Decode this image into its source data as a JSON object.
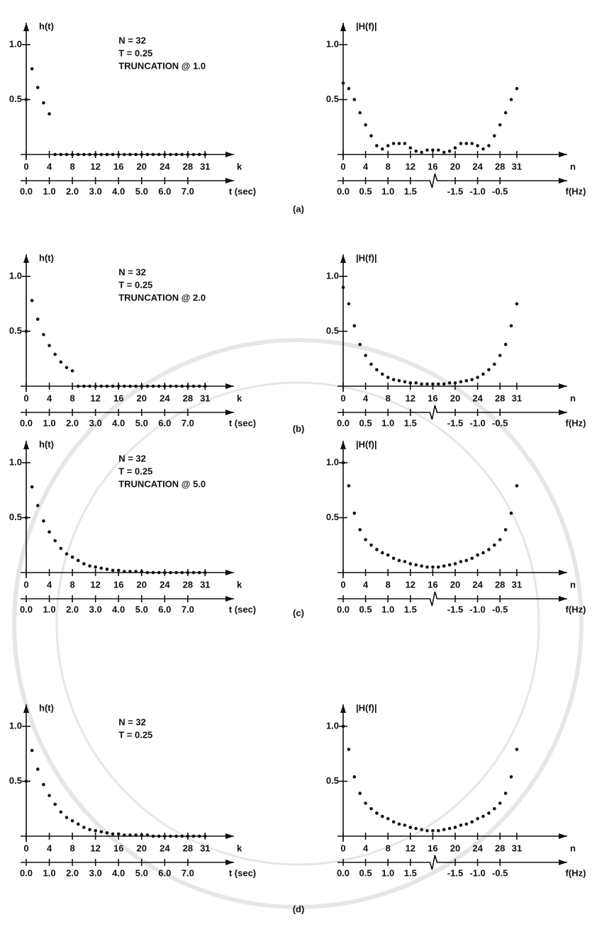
{
  "panel_labels": [
    "(a)",
    "(b)",
    "(c)",
    "(d)"
  ],
  "chart_data": [
    {
      "type": "scatter",
      "ylabel": "h(t)",
      "xlabel": "k",
      "x2label": "t (sec)",
      "annotations": [
        "N = 32",
        "T = 0.25",
        "TRUNCATION @ 1.0"
      ],
      "x": [
        0,
        1,
        2,
        3,
        4,
        5,
        6,
        7,
        8,
        9,
        10,
        11,
        12,
        13,
        14,
        15,
        16,
        17,
        18,
        19,
        20,
        21,
        22,
        23,
        24,
        25,
        26,
        27,
        28,
        29,
        30,
        31
      ],
      "values": [
        0.5,
        0.78,
        0.61,
        0.47,
        0.37,
        0,
        0,
        0,
        0,
        0,
        0,
        0,
        0,
        0,
        0,
        0,
        0,
        0,
        0,
        0,
        0,
        0,
        0,
        0,
        0,
        0,
        0,
        0,
        0,
        0,
        0,
        0
      ],
      "color": "#111111",
      "xlim": [
        0,
        36
      ],
      "ylim": [
        0,
        1.2
      ],
      "xticks": [
        0,
        4,
        8,
        12,
        16,
        20,
        24,
        28,
        31
      ],
      "yticks": [
        0.5,
        {
          "value": 1,
          "label": "1.0"
        }
      ],
      "x2ticks": [
        {
          "value": 0,
          "label": "0.0"
        },
        {
          "value": 4,
          "label": "1.0"
        },
        {
          "value": 8,
          "label": "2.0"
        },
        {
          "value": 12,
          "label": "3.0"
        },
        {
          "value": 16,
          "label": "4.0"
        },
        {
          "value": 20,
          "label": "5.0"
        },
        {
          "value": 24,
          "label": "6.0"
        },
        {
          "value": 28,
          "label": "7.0"
        }
      ]
    },
    {
      "type": "scatter",
      "ylabel": "|H(f)|",
      "xlabel": "n",
      "x2label": "f(Hz)",
      "x": [
        0,
        1,
        2,
        3,
        4,
        5,
        6,
        7,
        8,
        9,
        10,
        11,
        12,
        13,
        14,
        15,
        16,
        17,
        18,
        19,
        20,
        21,
        22,
        23,
        24,
        25,
        26,
        27,
        28,
        29,
        30,
        31
      ],
      "values": [
        0.65,
        0.6,
        0.5,
        0.38,
        0.27,
        0.17,
        0.08,
        0.05,
        0.08,
        0.1,
        0.1,
        0.1,
        0.06,
        0.03,
        0.02,
        0.04,
        0.04,
        0.04,
        0.02,
        0.03,
        0.06,
        0.1,
        0.1,
        0.1,
        0.08,
        0.05,
        0.08,
        0.17,
        0.27,
        0.38,
        0.5,
        0.6
      ],
      "color": "#111111",
      "xlim": [
        0,
        40
      ],
      "ylim": [
        0,
        1.2
      ],
      "xticks": [
        0,
        4,
        8,
        12,
        16,
        20,
        24,
        28,
        31
      ],
      "yticks": [
        0.5,
        {
          "value": 1,
          "label": "1.0"
        }
      ],
      "x2ticks": [
        {
          "value": 0,
          "label": "0.0"
        },
        {
          "value": 4,
          "label": "0.5"
        },
        {
          "value": 8,
          "label": "1.0"
        },
        {
          "value": 12,
          "label": "1.5"
        },
        {
          "value": 20,
          "label": "-1.5"
        },
        {
          "value": 24,
          "label": "-1.0"
        },
        {
          "value": 28,
          "label": "-0.5"
        }
      ]
    },
    {
      "type": "scatter",
      "ylabel": "h(t)",
      "xlabel": "k",
      "x2label": "t (sec)",
      "annotations": [
        "N = 32",
        "T = 0.25",
        "TRUNCATION @ 2.0"
      ],
      "x": [
        0,
        1,
        2,
        3,
        4,
        5,
        6,
        7,
        8,
        9,
        10,
        11,
        12,
        13,
        14,
        15,
        16,
        17,
        18,
        19,
        20,
        21,
        22,
        23,
        24,
        25,
        26,
        27,
        28,
        29,
        30,
        31
      ],
      "values": [
        0.5,
        0.78,
        0.61,
        0.47,
        0.37,
        0.29,
        0.22,
        0.17,
        0.14,
        0,
        0,
        0,
        0,
        0,
        0,
        0,
        0,
        0,
        0,
        0,
        0,
        0,
        0,
        0,
        0,
        0,
        0,
        0,
        0,
        0,
        0,
        0
      ],
      "color": "#111111",
      "xlim": [
        0,
        36
      ],
      "ylim": [
        0,
        1.2
      ],
      "xticks": [
        0,
        4,
        8,
        12,
        16,
        20,
        24,
        28,
        31
      ],
      "yticks": [
        0.5,
        {
          "value": 1,
          "label": "1.0"
        }
      ],
      "x2ticks": [
        {
          "value": 0,
          "label": "0.0"
        },
        {
          "value": 4,
          "label": "1.0"
        },
        {
          "value": 8,
          "label": "2.0"
        },
        {
          "value": 12,
          "label": "3.0"
        },
        {
          "value": 16,
          "label": "4.0"
        },
        {
          "value": 20,
          "label": "5.0"
        },
        {
          "value": 24,
          "label": "6.0"
        },
        {
          "value": 28,
          "label": "7.0"
        }
      ]
    },
    {
      "type": "scatter",
      "ylabel": "|H(f)|",
      "xlabel": "n",
      "x2label": "f(Hz)",
      "x": [
        0,
        1,
        2,
        3,
        4,
        5,
        6,
        7,
        8,
        9,
        10,
        11,
        12,
        13,
        14,
        15,
        16,
        17,
        18,
        19,
        20,
        21,
        22,
        23,
        24,
        25,
        26,
        27,
        28,
        29,
        30,
        31
      ],
      "values": [
        0.9,
        0.75,
        0.55,
        0.38,
        0.28,
        0.2,
        0.15,
        0.11,
        0.08,
        0.06,
        0.05,
        0.04,
        0.03,
        0.03,
        0.02,
        0.02,
        0.02,
        0.02,
        0.02,
        0.03,
        0.03,
        0.04,
        0.05,
        0.06,
        0.08,
        0.11,
        0.15,
        0.2,
        0.28,
        0.38,
        0.55,
        0.75
      ],
      "color": "#111111",
      "xlim": [
        0,
        40
      ],
      "ylim": [
        0,
        1.2
      ],
      "xticks": [
        0,
        4,
        8,
        12,
        16,
        20,
        24,
        28,
        31
      ],
      "yticks": [
        0.5,
        {
          "value": 1,
          "label": "1.0"
        }
      ],
      "x2ticks": [
        {
          "value": 0,
          "label": "0.0"
        },
        {
          "value": 4,
          "label": "0.5"
        },
        {
          "value": 8,
          "label": "1.0"
        },
        {
          "value": 12,
          "label": "1.5"
        },
        {
          "value": 20,
          "label": "-1.5"
        },
        {
          "value": 24,
          "label": "-1.0"
        },
        {
          "value": 28,
          "label": "-0.5"
        }
      ]
    },
    {
      "type": "scatter",
      "ylabel": "h(t)",
      "xlabel": "k",
      "x2label": "t (sec)",
      "annotations": [
        "N = 32",
        "T = 0.25",
        "TRUNCATION @ 5.0"
      ],
      "x": [
        0,
        1,
        2,
        3,
        4,
        5,
        6,
        7,
        8,
        9,
        10,
        11,
        12,
        13,
        14,
        15,
        16,
        17,
        18,
        19,
        20,
        21,
        22,
        23,
        24,
        25,
        26,
        27,
        28,
        29,
        30,
        31
      ],
      "values": [
        0.5,
        0.78,
        0.61,
        0.47,
        0.37,
        0.29,
        0.22,
        0.17,
        0.14,
        0.11,
        0.08,
        0.06,
        0.05,
        0.04,
        0.03,
        0.02,
        0.02,
        0.01,
        0.01,
        0.01,
        0.01,
        0,
        0,
        0,
        0,
        0,
        0,
        0,
        0,
        0,
        0,
        0
      ],
      "color": "#111111",
      "xlim": [
        0,
        36
      ],
      "ylim": [
        0,
        1.2
      ],
      "xticks": [
        0,
        4,
        8,
        12,
        16,
        20,
        24,
        28,
        31
      ],
      "yticks": [
        0.5,
        {
          "value": 1,
          "label": "1.0"
        }
      ],
      "x2ticks": [
        {
          "value": 0,
          "label": "0.0"
        },
        {
          "value": 4,
          "label": "1.0"
        },
        {
          "value": 8,
          "label": "2.0"
        },
        {
          "value": 12,
          "label": "3.0"
        },
        {
          "value": 16,
          "label": "4.0"
        },
        {
          "value": 20,
          "label": "5.0"
        },
        {
          "value": 24,
          "label": "6.0"
        },
        {
          "value": 28,
          "label": "7.0"
        }
      ]
    },
    {
      "type": "scatter",
      "ylabel": "|H(f)|",
      "xlabel": "n",
      "x2label": "f(Hz)",
      "x": [
        0,
        1,
        2,
        3,
        4,
        5,
        6,
        7,
        8,
        9,
        10,
        11,
        12,
        13,
        14,
        15,
        16,
        17,
        18,
        19,
        20,
        21,
        22,
        23,
        24,
        25,
        26,
        27,
        28,
        29,
        30,
        31
      ],
      "values": [
        1.0,
        0.79,
        0.54,
        0.39,
        0.3,
        0.25,
        0.21,
        0.18,
        0.16,
        0.13,
        0.11,
        0.1,
        0.08,
        0.07,
        0.06,
        0.05,
        0.05,
        0.05,
        0.06,
        0.07,
        0.08,
        0.1,
        0.11,
        0.13,
        0.16,
        0.18,
        0.21,
        0.25,
        0.3,
        0.39,
        0.54,
        0.79
      ],
      "color": "#111111",
      "xlim": [
        0,
        40
      ],
      "ylim": [
        0,
        1.2
      ],
      "xticks": [
        0,
        4,
        8,
        12,
        16,
        20,
        24,
        28,
        31
      ],
      "yticks": [
        0.5,
        {
          "value": 1,
          "label": "1.0"
        }
      ],
      "x2ticks": [
        {
          "value": 0,
          "label": "0.0"
        },
        {
          "value": 4,
          "label": "0.5"
        },
        {
          "value": 8,
          "label": "1.0"
        },
        {
          "value": 12,
          "label": "1.5"
        },
        {
          "value": 20,
          "label": "-1.5"
        },
        {
          "value": 24,
          "label": "-1.0"
        },
        {
          "value": 28,
          "label": "-0.5"
        }
      ]
    },
    {
      "type": "scatter",
      "ylabel": "h(t)",
      "xlabel": "k",
      "x2label": "t (sec)",
      "annotations": [
        "N = 32",
        "T = 0.25"
      ],
      "x": [
        0,
        1,
        2,
        3,
        4,
        5,
        6,
        7,
        8,
        9,
        10,
        11,
        12,
        13,
        14,
        15,
        16,
        17,
        18,
        19,
        20,
        21,
        22,
        23,
        24,
        25,
        26,
        27,
        28,
        29,
        30,
        31
      ],
      "values": [
        0.5,
        0.78,
        0.61,
        0.47,
        0.37,
        0.29,
        0.22,
        0.17,
        0.14,
        0.11,
        0.08,
        0.06,
        0.05,
        0.04,
        0.03,
        0.02,
        0.02,
        0.01,
        0.01,
        0.01,
        0.01,
        0.01,
        0,
        0,
        0,
        0,
        0,
        0,
        0,
        0,
        0,
        0
      ],
      "color": "#111111",
      "xlim": [
        0,
        36
      ],
      "ylim": [
        0,
        1.2
      ],
      "xticks": [
        0,
        4,
        8,
        12,
        16,
        20,
        24,
        28,
        31
      ],
      "yticks": [
        0.5,
        {
          "value": 1,
          "label": "1.0"
        }
      ],
      "x2ticks": [
        {
          "value": 0,
          "label": "0.0"
        },
        {
          "value": 4,
          "label": "1.0"
        },
        {
          "value": 8,
          "label": "2.0"
        },
        {
          "value": 12,
          "label": "3.0"
        },
        {
          "value": 16,
          "label": "4.0"
        },
        {
          "value": 20,
          "label": "5.0"
        },
        {
          "value": 24,
          "label": "6.0"
        },
        {
          "value": 28,
          "label": "7.0"
        }
      ]
    },
    {
      "type": "scatter",
      "ylabel": "|H(f)|",
      "xlabel": "n",
      "x2label": "f(Hz)",
      "x": [
        0,
        1,
        2,
        3,
        4,
        5,
        6,
        7,
        8,
        9,
        10,
        11,
        12,
        13,
        14,
        15,
        16,
        17,
        18,
        19,
        20,
        21,
        22,
        23,
        24,
        25,
        26,
        27,
        28,
        29,
        30,
        31
      ],
      "values": [
        1.0,
        0.79,
        0.54,
        0.39,
        0.3,
        0.25,
        0.21,
        0.18,
        0.16,
        0.13,
        0.11,
        0.1,
        0.08,
        0.07,
        0.06,
        0.05,
        0.05,
        0.05,
        0.06,
        0.07,
        0.08,
        0.1,
        0.11,
        0.13,
        0.16,
        0.18,
        0.21,
        0.25,
        0.3,
        0.39,
        0.54,
        0.79
      ],
      "color": "#111111",
      "xlim": [
        0,
        40
      ],
      "ylim": [
        0,
        1.2
      ],
      "xticks": [
        0,
        4,
        8,
        12,
        16,
        20,
        24,
        28,
        31
      ],
      "yticks": [
        0.5,
        {
          "value": 1,
          "label": "1.0"
        }
      ],
      "x2ticks": [
        {
          "value": 0,
          "label": "0.0"
        },
        {
          "value": 4,
          "label": "0.5"
        },
        {
          "value": 8,
          "label": "1.0"
        },
        {
          "value": 12,
          "label": "1.5"
        },
        {
          "value": 20,
          "label": "-1.5"
        },
        {
          "value": 24,
          "label": "-1.0"
        },
        {
          "value": 28,
          "label": "-0.5"
        }
      ]
    }
  ]
}
